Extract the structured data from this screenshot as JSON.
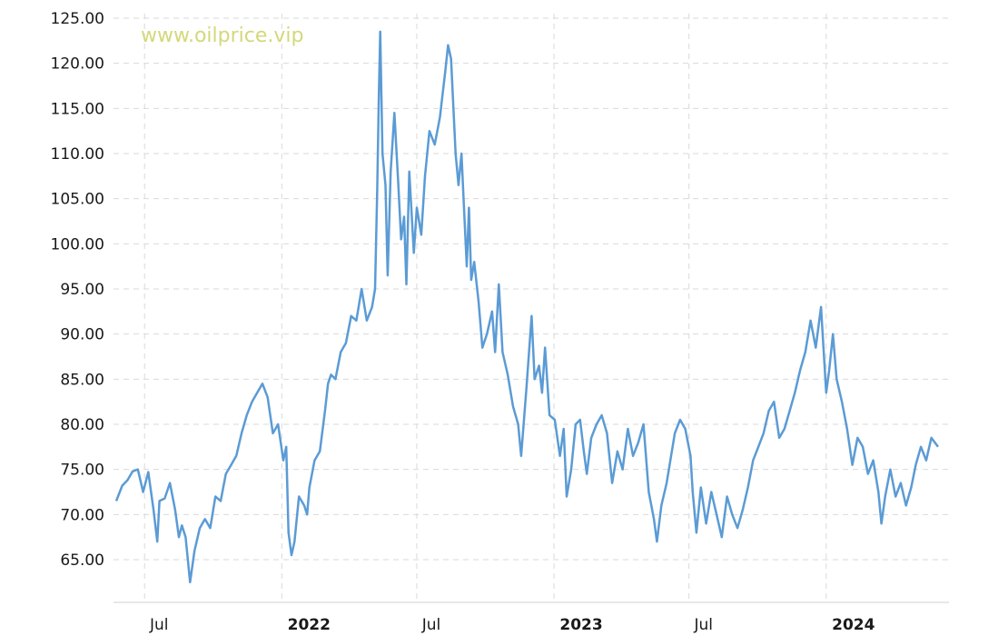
{
  "watermark": "www.oilprice.vip",
  "chart_data": {
    "type": "line",
    "title": "",
    "xlabel": "",
    "ylabel": "",
    "ylim": [
      61,
      125
    ],
    "xlim": [
      "2021-05-24",
      "2024-05-30"
    ],
    "grid": true,
    "y_ticks": [
      "125.00",
      "120.00",
      "115.00",
      "110.00",
      "105.00",
      "100.00",
      "95.00",
      "90.00",
      "85.00",
      "80.00",
      "75.00",
      "70.00",
      "65.00"
    ],
    "x_ticks": [
      {
        "label": "Jul",
        "date": "2021-07-01",
        "major": false
      },
      {
        "label": "2022",
        "date": "2022-01-01",
        "major": true
      },
      {
        "label": "Jul",
        "date": "2022-07-01",
        "major": false
      },
      {
        "label": "2023",
        "date": "2023-01-01",
        "major": true
      },
      {
        "label": "Jul",
        "date": "2023-07-01",
        "major": false
      },
      {
        "label": "2024",
        "date": "2024-01-01",
        "major": true
      }
    ],
    "series": [
      {
        "color": "#5b9bd5",
        "points": [
          [
            "2021-05-24",
            71.5
          ],
          [
            "2021-06-01",
            73.2
          ],
          [
            "2021-06-08",
            73.8
          ],
          [
            "2021-06-15",
            74.8
          ],
          [
            "2021-06-22",
            75.0
          ],
          [
            "2021-06-29",
            72.5
          ],
          [
            "2021-07-06",
            74.7
          ],
          [
            "2021-07-13",
            70.5
          ],
          [
            "2021-07-18",
            67.0
          ],
          [
            "2021-07-21",
            71.5
          ],
          [
            "2021-07-28",
            71.8
          ],
          [
            "2021-08-04",
            73.5
          ],
          [
            "2021-08-11",
            70.5
          ],
          [
            "2021-08-16",
            67.5
          ],
          [
            "2021-08-20",
            68.8
          ],
          [
            "2021-08-25",
            67.5
          ],
          [
            "2021-08-31",
            62.5
          ],
          [
            "2021-09-06",
            66.0
          ],
          [
            "2021-09-13",
            68.5
          ],
          [
            "2021-09-20",
            69.5
          ],
          [
            "2021-09-27",
            68.5
          ],
          [
            "2021-10-04",
            72.0
          ],
          [
            "2021-10-11",
            71.5
          ],
          [
            "2021-10-18",
            74.5
          ],
          [
            "2021-10-25",
            75.5
          ],
          [
            "2021-11-01",
            76.5
          ],
          [
            "2021-11-08",
            79.0
          ],
          [
            "2021-11-15",
            81.0
          ],
          [
            "2021-11-22",
            82.5
          ],
          [
            "2021-11-29",
            83.5
          ],
          [
            "2021-12-06",
            84.5
          ],
          [
            "2021-12-13",
            83.0
          ],
          [
            "2021-12-20",
            79.0
          ],
          [
            "2021-12-27",
            80.0
          ],
          [
            "2022-01-03",
            76.0
          ],
          [
            "2022-01-07",
            77.5
          ],
          [
            "2022-01-10",
            68.0
          ],
          [
            "2022-01-14",
            65.5
          ],
          [
            "2022-01-18",
            67.0
          ],
          [
            "2022-01-24",
            72.0
          ],
          [
            "2022-01-31",
            71.0
          ],
          [
            "2022-02-04",
            70.0
          ],
          [
            "2022-02-07",
            73.0
          ],
          [
            "2022-02-14",
            76.0
          ],
          [
            "2022-02-21",
            77.0
          ],
          [
            "2022-02-28",
            81.5
          ],
          [
            "2022-03-04",
            84.5
          ],
          [
            "2022-03-08",
            85.5
          ],
          [
            "2022-03-14",
            85.0
          ],
          [
            "2022-03-21",
            88.0
          ],
          [
            "2022-03-28",
            89.0
          ],
          [
            "2022-04-04",
            92.0
          ],
          [
            "2022-04-11",
            91.5
          ],
          [
            "2022-04-18",
            95.0
          ],
          [
            "2022-04-25",
            91.5
          ],
          [
            "2022-05-02",
            93.0
          ],
          [
            "2022-05-06",
            95.0
          ],
          [
            "2022-05-09",
            106.0
          ],
          [
            "2022-05-11",
            116.0
          ],
          [
            "2022-05-13",
            123.5
          ],
          [
            "2022-05-16",
            110.0
          ],
          [
            "2022-05-20",
            106.5
          ],
          [
            "2022-05-23",
            96.5
          ],
          [
            "2022-05-27",
            108.0
          ],
          [
            "2022-06-01",
            114.5
          ],
          [
            "2022-06-06",
            107.0
          ],
          [
            "2022-06-10",
            100.5
          ],
          [
            "2022-06-14",
            103.0
          ],
          [
            "2022-06-17",
            95.5
          ],
          [
            "2022-06-21",
            108.0
          ],
          [
            "2022-06-27",
            99.0
          ],
          [
            "2022-07-01",
            104.0
          ],
          [
            "2022-07-07",
            101.0
          ],
          [
            "2022-07-12",
            107.5
          ],
          [
            "2022-07-18",
            112.5
          ],
          [
            "2022-07-25",
            111.0
          ],
          [
            "2022-08-01",
            114.0
          ],
          [
            "2022-08-08",
            119.0
          ],
          [
            "2022-08-12",
            122.0
          ],
          [
            "2022-08-16",
            120.5
          ],
          [
            "2022-08-22",
            110.0
          ],
          [
            "2022-08-26",
            106.5
          ],
          [
            "2022-08-30",
            110.0
          ],
          [
            "2022-09-02",
            104.5
          ],
          [
            "2022-09-06",
            97.5
          ],
          [
            "2022-09-09",
            104.0
          ],
          [
            "2022-09-12",
            96.0
          ],
          [
            "2022-09-16",
            98.0
          ],
          [
            "2022-09-22",
            93.5
          ],
          [
            "2022-09-27",
            88.5
          ],
          [
            "2022-10-03",
            90.0
          ],
          [
            "2022-10-10",
            92.5
          ],
          [
            "2022-10-14",
            88.0
          ],
          [
            "2022-10-19",
            95.5
          ],
          [
            "2022-10-24",
            88.0
          ],
          [
            "2022-10-31",
            85.5
          ],
          [
            "2022-11-07",
            82.0
          ],
          [
            "2022-11-14",
            80.0
          ],
          [
            "2022-11-18",
            76.5
          ],
          [
            "2022-11-25",
            84.0
          ],
          [
            "2022-12-02",
            92.0
          ],
          [
            "2022-12-06",
            85.0
          ],
          [
            "2022-12-12",
            86.5
          ],
          [
            "2022-12-16",
            83.5
          ],
          [
            "2022-12-20",
            88.5
          ],
          [
            "2022-12-26",
            81.0
          ],
          [
            "2023-01-02",
            80.5
          ],
          [
            "2023-01-09",
            76.5
          ],
          [
            "2023-01-14",
            79.5
          ],
          [
            "2023-01-18",
            72.0
          ],
          [
            "2023-01-24",
            75.0
          ],
          [
            "2023-01-30",
            80.0
          ],
          [
            "2023-02-05",
            80.5
          ],
          [
            "2023-02-10",
            77.0
          ],
          [
            "2023-02-14",
            74.5
          ],
          [
            "2023-02-20",
            78.5
          ],
          [
            "2023-02-27",
            80.0
          ],
          [
            "2023-03-06",
            81.0
          ],
          [
            "2023-03-13",
            79.0
          ],
          [
            "2023-03-20",
            73.5
          ],
          [
            "2023-03-27",
            77.0
          ],
          [
            "2023-04-03",
            75.0
          ],
          [
            "2023-04-10",
            79.5
          ],
          [
            "2023-04-17",
            76.5
          ],
          [
            "2023-04-24",
            78.0
          ],
          [
            "2023-05-01",
            80.0
          ],
          [
            "2023-05-08",
            72.5
          ],
          [
            "2023-05-15",
            69.5
          ],
          [
            "2023-05-19",
            67.0
          ],
          [
            "2023-05-25",
            71.0
          ],
          [
            "2023-06-01",
            73.5
          ],
          [
            "2023-06-07",
            76.5
          ],
          [
            "2023-06-12",
            79.0
          ],
          [
            "2023-06-19",
            80.5
          ],
          [
            "2023-06-26",
            79.5
          ],
          [
            "2023-07-03",
            76.5
          ],
          [
            "2023-07-06",
            72.5
          ],
          [
            "2023-07-11",
            68.0
          ],
          [
            "2023-07-17",
            73.0
          ],
          [
            "2023-07-24",
            69.0
          ],
          [
            "2023-07-31",
            72.5
          ],
          [
            "2023-08-07",
            70.0
          ],
          [
            "2023-08-14",
            67.5
          ],
          [
            "2023-08-21",
            72.0
          ],
          [
            "2023-08-28",
            70.0
          ],
          [
            "2023-09-04",
            68.5
          ],
          [
            "2023-09-11",
            70.5
          ],
          [
            "2023-09-18",
            73.0
          ],
          [
            "2023-09-25",
            76.0
          ],
          [
            "2023-10-02",
            77.5
          ],
          [
            "2023-10-09",
            79.0
          ],
          [
            "2023-10-16",
            81.5
          ],
          [
            "2023-10-23",
            82.5
          ],
          [
            "2023-10-30",
            78.5
          ],
          [
            "2023-11-06",
            79.5
          ],
          [
            "2023-11-13",
            81.5
          ],
          [
            "2023-11-20",
            83.5
          ],
          [
            "2023-11-27",
            86.0
          ],
          [
            "2023-12-04",
            88.0
          ],
          [
            "2023-12-11",
            91.5
          ],
          [
            "2023-12-18",
            88.5
          ],
          [
            "2023-12-25",
            93.0
          ],
          [
            "2024-01-01",
            83.5
          ],
          [
            "2024-01-05",
            86.0
          ],
          [
            "2024-01-10",
            90.0
          ],
          [
            "2024-01-15",
            85.0
          ],
          [
            "2024-01-22",
            82.5
          ],
          [
            "2024-01-29",
            79.5
          ],
          [
            "2024-02-05",
            75.5
          ],
          [
            "2024-02-12",
            78.5
          ],
          [
            "2024-02-19",
            77.5
          ],
          [
            "2024-02-26",
            74.5
          ],
          [
            "2024-03-04",
            76.0
          ],
          [
            "2024-03-11",
            72.5
          ],
          [
            "2024-03-15",
            69.0
          ],
          [
            "2024-03-20",
            72.0
          ],
          [
            "2024-03-27",
            75.0
          ],
          [
            "2024-04-03",
            72.0
          ],
          [
            "2024-04-10",
            73.5
          ],
          [
            "2024-04-17",
            71.0
          ],
          [
            "2024-04-24",
            73.0
          ],
          [
            "2024-04-30",
            75.5
          ],
          [
            "2024-05-07",
            77.5
          ],
          [
            "2024-05-14",
            76.0
          ],
          [
            "2024-05-21",
            78.5
          ],
          [
            "2024-05-30",
            77.5
          ]
        ]
      }
    ]
  }
}
